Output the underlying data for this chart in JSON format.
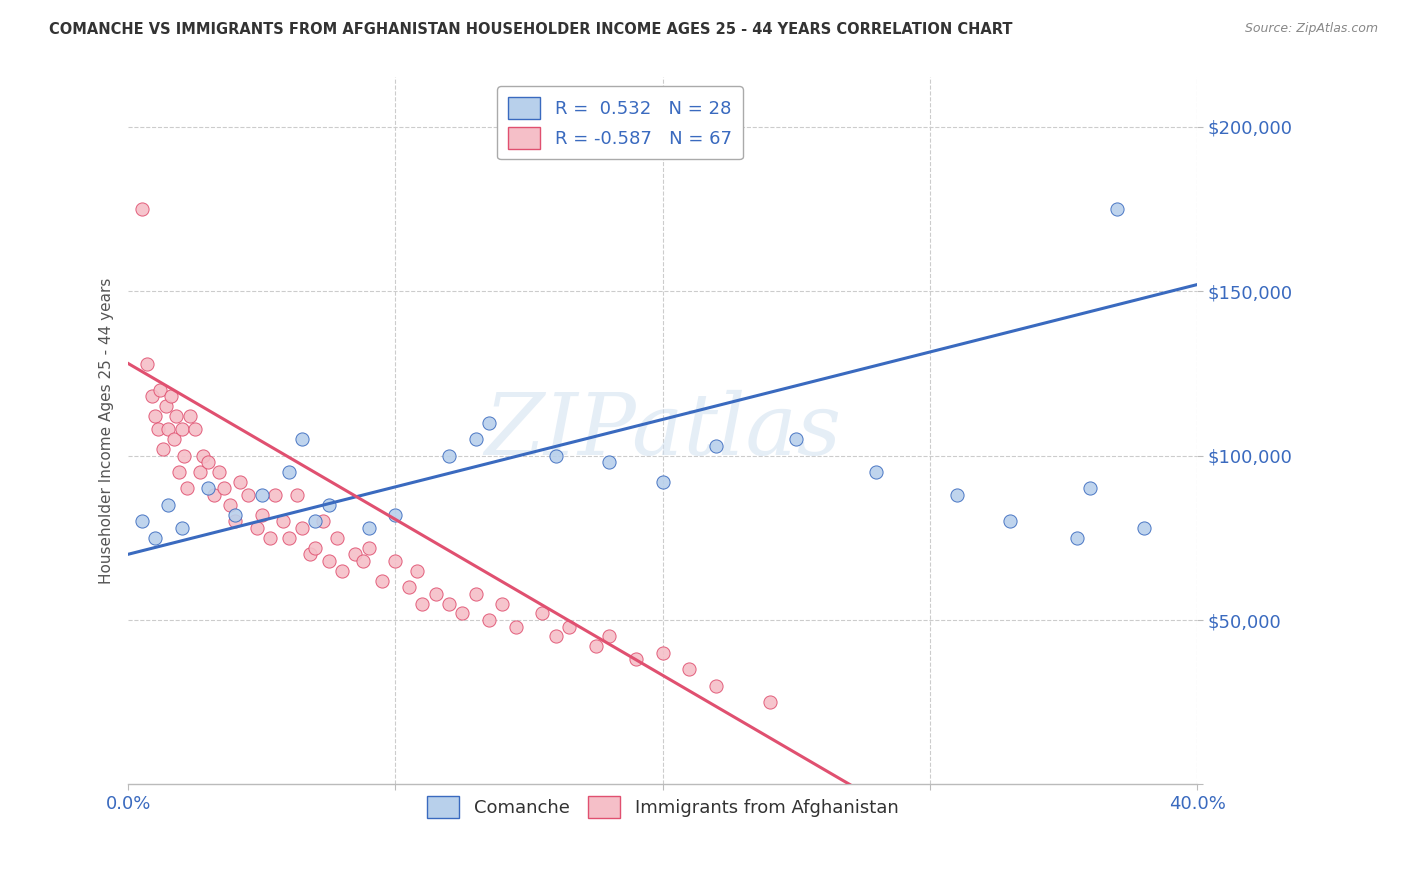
{
  "title": "COMANCHE VS IMMIGRANTS FROM AFGHANISTAN HOUSEHOLDER INCOME AGES 25 - 44 YEARS CORRELATION CHART",
  "source": "Source: ZipAtlas.com",
  "ylabel": "Householder Income Ages 25 - 44 years",
  "watermark": "ZIPatlas",
  "legend1_label": "R =  0.532   N = 28",
  "legend2_label": "R = -0.587   N = 67",
  "scatter_blue_color": "#b8d0eb",
  "scatter_pink_color": "#f5bfc8",
  "line_blue_color": "#3a6abf",
  "line_pink_color": "#e05070",
  "title_color": "#333333",
  "axis_label_color": "#3a6abf",
  "legend_text_color": "#3a6abf",
  "xlim": [
    0.0,
    0.4
  ],
  "ylim": [
    0,
    215000
  ],
  "blue_scatter_x": [
    0.005,
    0.01,
    0.015,
    0.02,
    0.03,
    0.04,
    0.05,
    0.06,
    0.065,
    0.07,
    0.075,
    0.09,
    0.1,
    0.12,
    0.13,
    0.135,
    0.16,
    0.18,
    0.2,
    0.22,
    0.25,
    0.28,
    0.31,
    0.33,
    0.355,
    0.36,
    0.37,
    0.38
  ],
  "blue_scatter_y": [
    80000,
    75000,
    85000,
    78000,
    90000,
    82000,
    88000,
    95000,
    105000,
    80000,
    85000,
    78000,
    82000,
    100000,
    105000,
    110000,
    100000,
    98000,
    92000,
    103000,
    105000,
    95000,
    88000,
    80000,
    75000,
    90000,
    175000,
    78000
  ],
  "pink_scatter_x": [
    0.005,
    0.007,
    0.009,
    0.01,
    0.011,
    0.012,
    0.013,
    0.014,
    0.015,
    0.016,
    0.017,
    0.018,
    0.019,
    0.02,
    0.021,
    0.022,
    0.023,
    0.025,
    0.027,
    0.028,
    0.03,
    0.032,
    0.034,
    0.036,
    0.038,
    0.04,
    0.042,
    0.045,
    0.048,
    0.05,
    0.053,
    0.055,
    0.058,
    0.06,
    0.063,
    0.065,
    0.068,
    0.07,
    0.073,
    0.075,
    0.078,
    0.08,
    0.085,
    0.088,
    0.09,
    0.095,
    0.1,
    0.105,
    0.108,
    0.11,
    0.115,
    0.12,
    0.125,
    0.13,
    0.135,
    0.14,
    0.145,
    0.155,
    0.16,
    0.165,
    0.175,
    0.18,
    0.19,
    0.2,
    0.21,
    0.22,
    0.24
  ],
  "pink_scatter_y": [
    175000,
    128000,
    118000,
    112000,
    108000,
    120000,
    102000,
    115000,
    108000,
    118000,
    105000,
    112000,
    95000,
    108000,
    100000,
    90000,
    112000,
    108000,
    95000,
    100000,
    98000,
    88000,
    95000,
    90000,
    85000,
    80000,
    92000,
    88000,
    78000,
    82000,
    75000,
    88000,
    80000,
    75000,
    88000,
    78000,
    70000,
    72000,
    80000,
    68000,
    75000,
    65000,
    70000,
    68000,
    72000,
    62000,
    68000,
    60000,
    65000,
    55000,
    58000,
    55000,
    52000,
    58000,
    50000,
    55000,
    48000,
    52000,
    45000,
    48000,
    42000,
    45000,
    38000,
    40000,
    35000,
    30000,
    25000
  ],
  "blue_line_x": [
    0.0,
    0.4
  ],
  "blue_line_y": [
    70000,
    152000
  ],
  "pink_line_x": [
    0.0,
    0.27
  ],
  "pink_line_y": [
    128000,
    0
  ],
  "grid_color": "#cccccc",
  "background_color": "#ffffff"
}
